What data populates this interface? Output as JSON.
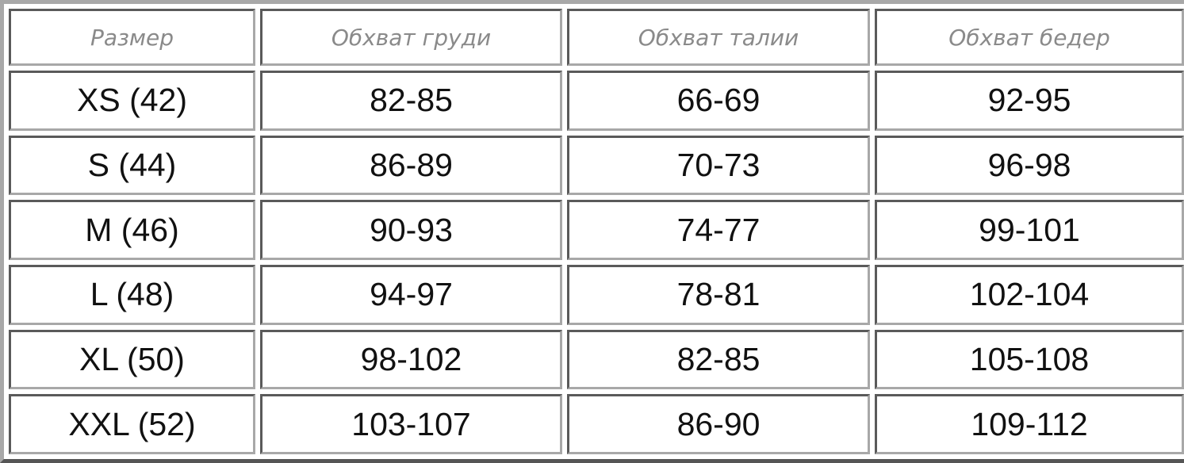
{
  "table": {
    "headers": [
      "Размер",
      "Обхват груди",
      "Обхват талии",
      "Обхват бедер"
    ],
    "rows": [
      [
        "XS (42)",
        "82-85",
        "66-69",
        "92-95"
      ],
      [
        "S (44)",
        "86-89",
        "70-73",
        "96-98"
      ],
      [
        "M (46)",
        "90-93",
        "74-77",
        "99-101"
      ],
      [
        "L (48)",
        "94-97",
        "78-81",
        "102-104"
      ],
      [
        "XL (50)",
        "98-102",
        "82-85",
        "105-108"
      ],
      [
        "XXL (52)",
        "103-107",
        "86-90",
        "109-112"
      ]
    ]
  }
}
